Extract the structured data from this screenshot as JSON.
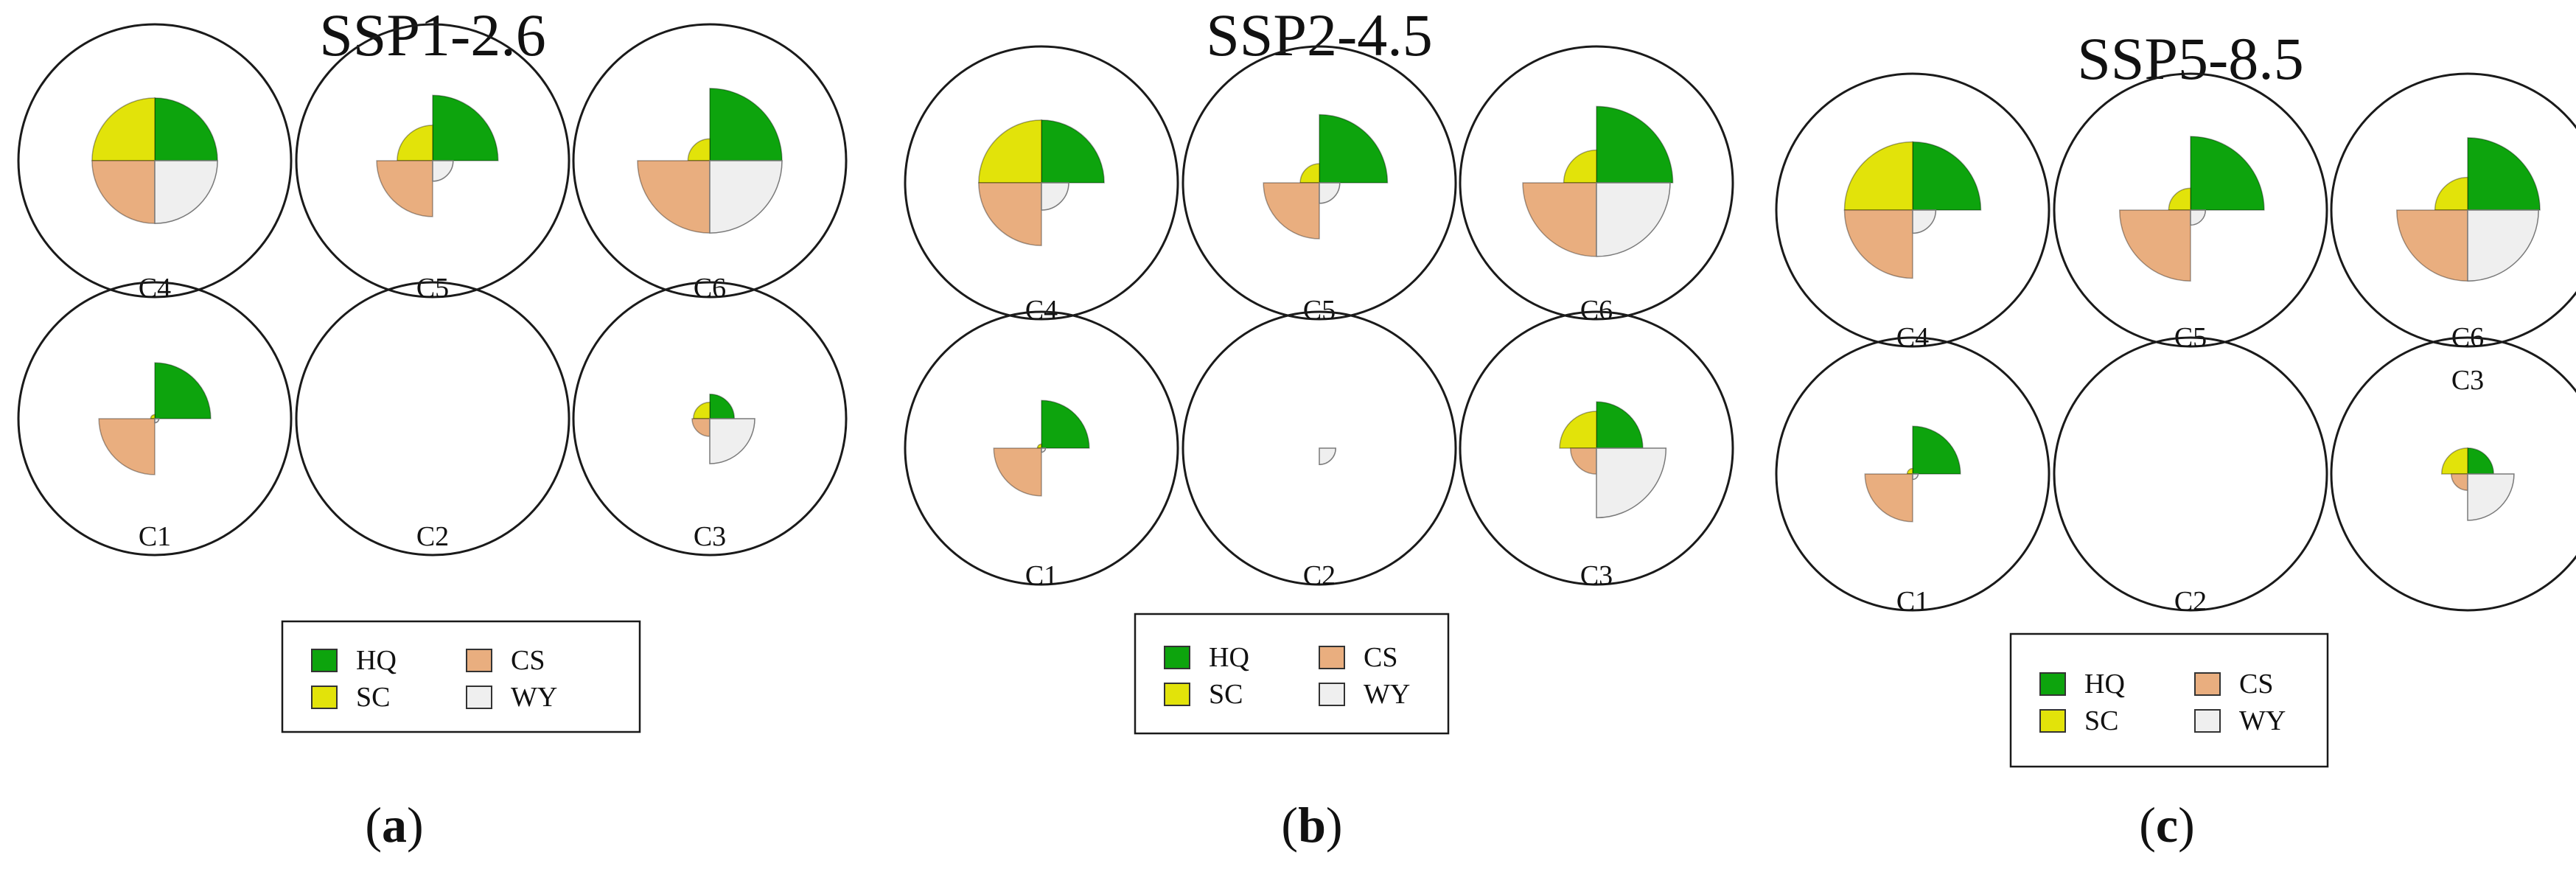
{
  "colors": {
    "HQ": "#0da40d",
    "SC": "#e2e30a",
    "CS": "#e9ae7f",
    "WY": "#efefef",
    "outline": "#1a1a1a",
    "wedge_stroke": "#7a7a7a"
  },
  "legend": {
    "HQ": "HQ",
    "SC": "SC",
    "CS": "CS",
    "WY": "WY"
  },
  "chart_data": [
    {
      "type": "polar-area",
      "title": "SSP1-2.6",
      "caption_letter": "a",
      "quadrants": {
        "HQ": "top-right",
        "SC": "top-left",
        "CS": "bottom-left",
        "WY": "bottom-right"
      },
      "scale_max": 1.0,
      "clusters": [
        {
          "label": "C4",
          "HQ": 0.46,
          "SC": 0.46,
          "CS": 0.46,
          "WY": 0.46
        },
        {
          "label": "C5",
          "HQ": 0.48,
          "SC": 0.26,
          "CS": 0.41,
          "WY": 0.15
        },
        {
          "label": "C6",
          "HQ": 0.53,
          "SC": 0.16,
          "CS": 0.53,
          "WY": 0.53
        },
        {
          "label": "C1",
          "HQ": 0.41,
          "SC": 0.03,
          "CS": 0.41,
          "WY": 0.03
        },
        {
          "label": "C2",
          "HQ": 0.0,
          "SC": 0.0,
          "CS": 0.0,
          "WY": 0.0
        },
        {
          "label": "C3",
          "HQ": 0.18,
          "SC": 0.12,
          "CS": 0.13,
          "WY": 0.33
        }
      ]
    },
    {
      "type": "polar-area",
      "title": "SSP2-4.5",
      "caption_letter": "b",
      "quadrants": {
        "HQ": "top-right",
        "SC": "top-left",
        "CS": "bottom-left",
        "WY": "bottom-right"
      },
      "scale_max": 1.0,
      "clusters": [
        {
          "label": "C4",
          "HQ": 0.46,
          "SC": 0.46,
          "CS": 0.46,
          "WY": 0.2
        },
        {
          "label": "C5",
          "HQ": 0.5,
          "SC": 0.14,
          "CS": 0.41,
          "WY": 0.15
        },
        {
          "label": "C6",
          "HQ": 0.56,
          "SC": 0.24,
          "CS": 0.54,
          "WY": 0.54
        },
        {
          "label": "C1",
          "HQ": 0.35,
          "SC": 0.03,
          "CS": 0.35,
          "WY": 0.03
        },
        {
          "label": "C2",
          "HQ": 0.0,
          "SC": 0.0,
          "CS": 0.0,
          "WY": 0.12
        },
        {
          "label": "C3",
          "HQ": 0.34,
          "SC": 0.27,
          "CS": 0.19,
          "WY": 0.51
        }
      ]
    },
    {
      "type": "polar-area",
      "title": "SSP5-8.5",
      "caption_letter": "c",
      "quadrants": {
        "HQ": "top-right",
        "SC": "top-left",
        "CS": "bottom-left",
        "WY": "bottom-right"
      },
      "scale_max": 1.0,
      "clusters": [
        {
          "label": "C4",
          "HQ": 0.5,
          "SC": 0.5,
          "CS": 0.5,
          "WY": 0.17
        },
        {
          "label": "C5",
          "HQ": 0.54,
          "SC": 0.16,
          "CS": 0.52,
          "WY": 0.11
        },
        {
          "label": "C6",
          "HQ": 0.53,
          "SC": 0.24,
          "CS": 0.52,
          "WY": 0.52
        },
        {
          "label": "C1",
          "HQ": 0.35,
          "SC": 0.04,
          "CS": 0.35,
          "WY": 0.04
        },
        {
          "label": "C2",
          "HQ": 0.0,
          "SC": 0.0,
          "CS": 0.0,
          "WY": 0.0
        },
        {
          "label": "C3",
          "HQ": 0.19,
          "SC": 0.19,
          "CS": 0.12,
          "WY": 0.34
        }
      ]
    }
  ]
}
